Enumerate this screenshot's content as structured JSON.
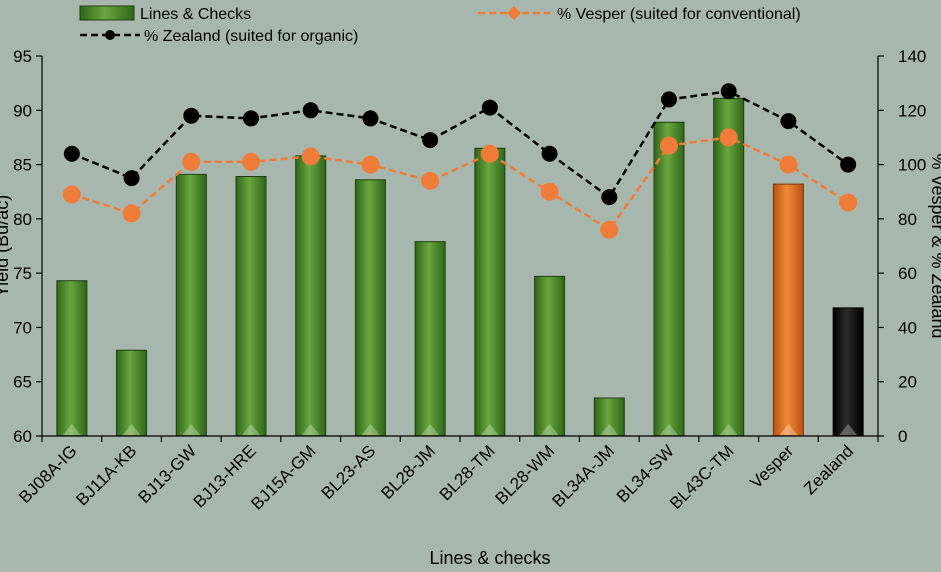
{
  "chart_data": {
    "type": "bar",
    "title": "",
    "xlabel": "Lines & checks",
    "ylabel": "Yield (Bu/ac)",
    "y2label": "% Vesper & % Zealand",
    "ylim": [
      60,
      95
    ],
    "y2lim": [
      0,
      140
    ],
    "yticks": [
      60,
      65,
      70,
      75,
      80,
      85,
      90,
      95
    ],
    "y2ticks": [
      0,
      20,
      40,
      60,
      80,
      100,
      120,
      140
    ],
    "categories": [
      "BJ08A-IG",
      "BJ11A-KB",
      "BJ13-GW",
      "BJ13-HRE",
      "BJ15A-GM",
      "BL23-AS",
      "BL28-JM",
      "BL28-TM",
      "BL28-WM",
      "BL34A-JM",
      "BL34-SW",
      "BL43C-TM",
      "Vesper",
      "Zealand"
    ],
    "bar_series": {
      "name": "Lines & Checks",
      "values": [
        74.3,
        67.9,
        84.1,
        83.9,
        85.8,
        83.6,
        77.9,
        86.5,
        74.7,
        63.5,
        88.9,
        91.1,
        83.2,
        71.8
      ],
      "colors": [
        "#4a8a2c",
        "#4a8a2c",
        "#4a8a2c",
        "#4a8a2c",
        "#4a8a2c",
        "#4a8a2c",
        "#4a8a2c",
        "#4a8a2c",
        "#4a8a2c",
        "#4a8a2c",
        "#4a8a2c",
        "#4a8a2c",
        "#e0701c",
        "#0a0a0a"
      ]
    },
    "line_series": [
      {
        "name": "% Vesper (suited for conventional)",
        "axis": "right",
        "color": "#f07c3a",
        "values": [
          89,
          82,
          101,
          101,
          103,
          100,
          94,
          104,
          90,
          76,
          107,
          110,
          100,
          86
        ]
      },
      {
        "name": "% Zealand (suited for organic)",
        "axis": "right",
        "color": "#000000",
        "values": [
          104,
          95,
          118,
          117,
          120,
          117,
          109,
          121,
          104,
          88,
          124,
          127,
          116,
          100
        ]
      }
    ],
    "legend": [
      "Lines & Checks",
      "% Vesper (suited for conventional)",
      "% Zealand (suited for organic)"
    ],
    "legend_position": "top",
    "grid": false
  }
}
